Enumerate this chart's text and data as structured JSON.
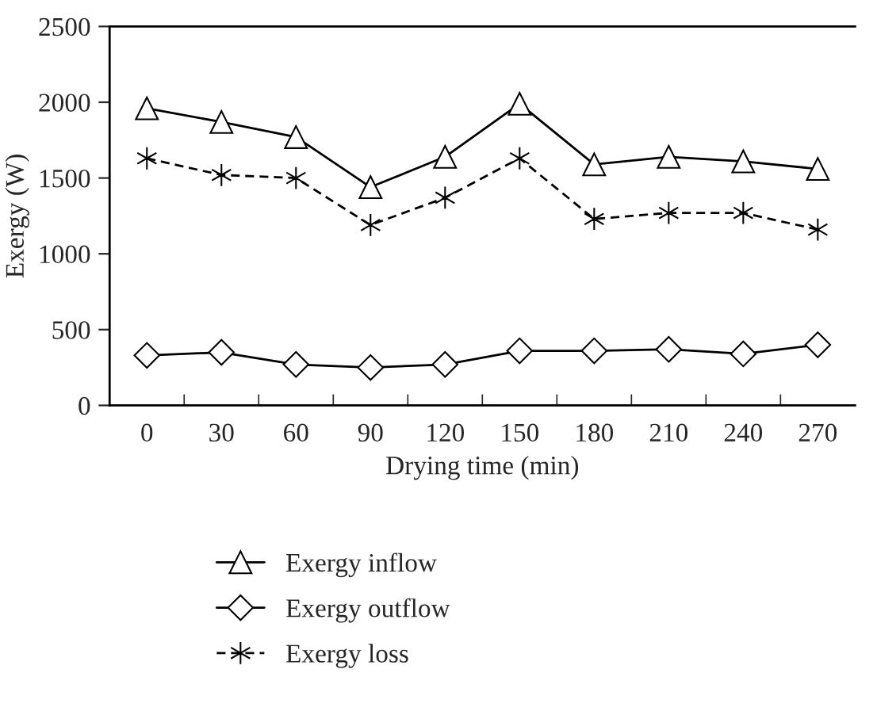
{
  "chart_data": {
    "type": "line",
    "xlabel": "Drying time (min)",
    "ylabel": "Exergy (W)",
    "categories": [
      "0",
      "30",
      "60",
      "90",
      "120",
      "150",
      "180",
      "210",
      "240",
      "270"
    ],
    "series": [
      {
        "name": "Exergy inflow",
        "color": "#000000",
        "marker": "triangle",
        "line_style": "solid",
        "values": [
          1960,
          1870,
          1770,
          1440,
          1640,
          1990,
          1590,
          1640,
          1610,
          1560
        ]
      },
      {
        "name": "Exergy outflow",
        "color": "#000000",
        "marker": "diamond",
        "line_style": "solid",
        "values": [
          330,
          350,
          270,
          250,
          270,
          360,
          360,
          370,
          340,
          400
        ]
      },
      {
        "name": "Exergy loss",
        "color": "#000000",
        "marker": "cross",
        "line_style": "dashed",
        "values": [
          1630,
          1520,
          1500,
          1190,
          1370,
          1630,
          1230,
          1270,
          1270,
          1160
        ]
      }
    ],
    "ylim": [
      0,
      2500
    ],
    "yticks": [
      0,
      500,
      1000,
      1500,
      2000,
      2500
    ],
    "grid": false,
    "legend": "bottom"
  }
}
